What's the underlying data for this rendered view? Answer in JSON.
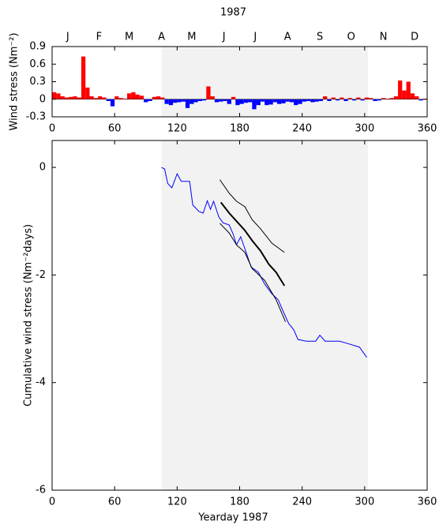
{
  "chart_data": [
    {
      "type": "bar",
      "title": "1987",
      "ylabel": "Wind stress (Nm⁻²)",
      "x": [
        0,
        4,
        8,
        12,
        16,
        20,
        24,
        28,
        32,
        36,
        40,
        44,
        48,
        52,
        56,
        60,
        64,
        68,
        72,
        76,
        80,
        84,
        88,
        92,
        96,
        100,
        104,
        108,
        112,
        116,
        120,
        124,
        128,
        132,
        136,
        140,
        144,
        148,
        152,
        156,
        160,
        164,
        168,
        172,
        176,
        180,
        184,
        188,
        192,
        196,
        200,
        204,
        208,
        212,
        216,
        220,
        224,
        228,
        232,
        236,
        240,
        244,
        248,
        252,
        256,
        260,
        264,
        268,
        272,
        276,
        280,
        284,
        288,
        292,
        296,
        300,
        304,
        308,
        312,
        316,
        320,
        324,
        328,
        332,
        336,
        340,
        344,
        348,
        352,
        356
      ],
      "values": [
        0.12,
        0.1,
        0.05,
        0.03,
        0.04,
        0.05,
        0.03,
        0.73,
        0.2,
        0.05,
        0.02,
        0.05,
        0.03,
        -0.03,
        -0.12,
        0.05,
        0.02,
        0.01,
        0.1,
        0.12,
        0.08,
        0.06,
        -0.05,
        -0.03,
        0.04,
        0.05,
        0.03,
        -0.08,
        -0.1,
        -0.06,
        -0.05,
        -0.04,
        -0.15,
        -0.08,
        -0.05,
        -0.03,
        -0.02,
        0.22,
        0.05,
        -0.05,
        -0.04,
        -0.03,
        -0.08,
        0.04,
        -0.1,
        -0.08,
        -0.06,
        -0.05,
        -0.17,
        -0.1,
        -0.04,
        -0.1,
        -0.09,
        -0.05,
        -0.08,
        -0.07,
        -0.04,
        -0.05,
        -0.1,
        -0.08,
        -0.04,
        -0.03,
        -0.05,
        -0.04,
        -0.03,
        0.05,
        -0.03,
        0.03,
        -0.02,
        0.03,
        -0.03,
        0.02,
        -0.02,
        0.03,
        -0.02,
        0.03,
        0.02,
        -0.03,
        -0.02,
        0.02,
        0.01,
        0.02,
        0.05,
        0.32,
        0.15,
        0.3,
        0.1,
        0.05,
        -0.02,
        0.01
      ],
      "bar_width": 4,
      "positive_color": "#ff0000",
      "negative_color": "#0000ff",
      "xlim": [
        0,
        360
      ],
      "xticks": [
        0,
        60,
        120,
        180,
        240,
        300,
        360
      ],
      "ylim": [
        -0.3,
        0.9
      ],
      "yticks": [
        -0.3,
        0,
        0.3,
        0.6,
        0.9
      ],
      "x2ticks": [
        {
          "value": 15,
          "label": "J"
        },
        {
          "value": 45,
          "label": "F"
        },
        {
          "value": 74,
          "label": "M"
        },
        {
          "value": 105,
          "label": "A"
        },
        {
          "value": 134,
          "label": "M"
        },
        {
          "value": 165,
          "label": "J"
        },
        {
          "value": 195,
          "label": "J"
        },
        {
          "value": 226,
          "label": "A"
        },
        {
          "value": 257,
          "label": "S"
        },
        {
          "value": 287,
          "label": "O"
        },
        {
          "value": 318,
          "label": "N"
        },
        {
          "value": 348,
          "label": "D"
        }
      ],
      "shade": [
        105,
        303
      ],
      "shade_color": "#f2f2f2"
    },
    {
      "type": "line",
      "xlabel": "Yearday 1987",
      "ylabel": "Cumulative wind stress (Nm⁻²days)",
      "xlim": [
        0,
        360
      ],
      "xticks": [
        0,
        60,
        120,
        180,
        240,
        300,
        360
      ],
      "ylim": [
        -6,
        0.5
      ],
      "yticks": [
        -6,
        -4,
        -2,
        0
      ],
      "shade": [
        105,
        303
      ],
      "shade_color": "#f2f2f2",
      "series": [
        {
          "color": "#0000ff",
          "line_width": 1,
          "x": [
            105,
            108,
            111,
            115,
            120,
            124,
            132,
            135,
            141,
            145,
            149,
            152,
            155,
            160,
            164,
            170,
            174,
            177,
            181,
            185,
            191,
            198,
            204,
            211,
            217,
            221,
            227,
            232,
            236,
            244,
            253,
            257,
            262,
            276,
            283,
            295,
            302
          ],
          "values": [
            0,
            -0.03,
            -0.3,
            -0.38,
            -0.12,
            -0.26,
            -0.26,
            -0.7,
            -0.82,
            -0.85,
            -0.62,
            -0.78,
            -0.63,
            -0.92,
            -1.03,
            -1.07,
            -1.25,
            -1.44,
            -1.29,
            -1.51,
            -1.85,
            -1.95,
            -2.17,
            -2.35,
            -2.46,
            -2.64,
            -2.9,
            -3.02,
            -3.2,
            -3.23,
            -3.23,
            -3.12,
            -3.23,
            -3.23,
            -3.27,
            -3.34,
            -3.53
          ]
        },
        {
          "color": "#000000",
          "line_width": 2,
          "x": [
            162,
            170,
            177,
            185,
            192,
            200,
            208,
            215,
            223
          ],
          "values": [
            -0.65,
            -0.85,
            -1.0,
            -1.17,
            -1.36,
            -1.55,
            -1.8,
            -1.95,
            -2.2
          ]
        },
        {
          "color": "#000000",
          "line_width": 1,
          "x": [
            161,
            170,
            177,
            185,
            192,
            200,
            211,
            223
          ],
          "values": [
            -0.23,
            -0.48,
            -0.63,
            -0.73,
            -0.97,
            -1.14,
            -1.41,
            -1.58
          ]
        },
        {
          "color": "#000000",
          "line_width": 1,
          "x": [
            161,
            170,
            177,
            185,
            192,
            204,
            215,
            224
          ],
          "values": [
            -1.04,
            -1.22,
            -1.44,
            -1.58,
            -1.88,
            -2.1,
            -2.46,
            -2.87
          ]
        }
      ]
    }
  ]
}
